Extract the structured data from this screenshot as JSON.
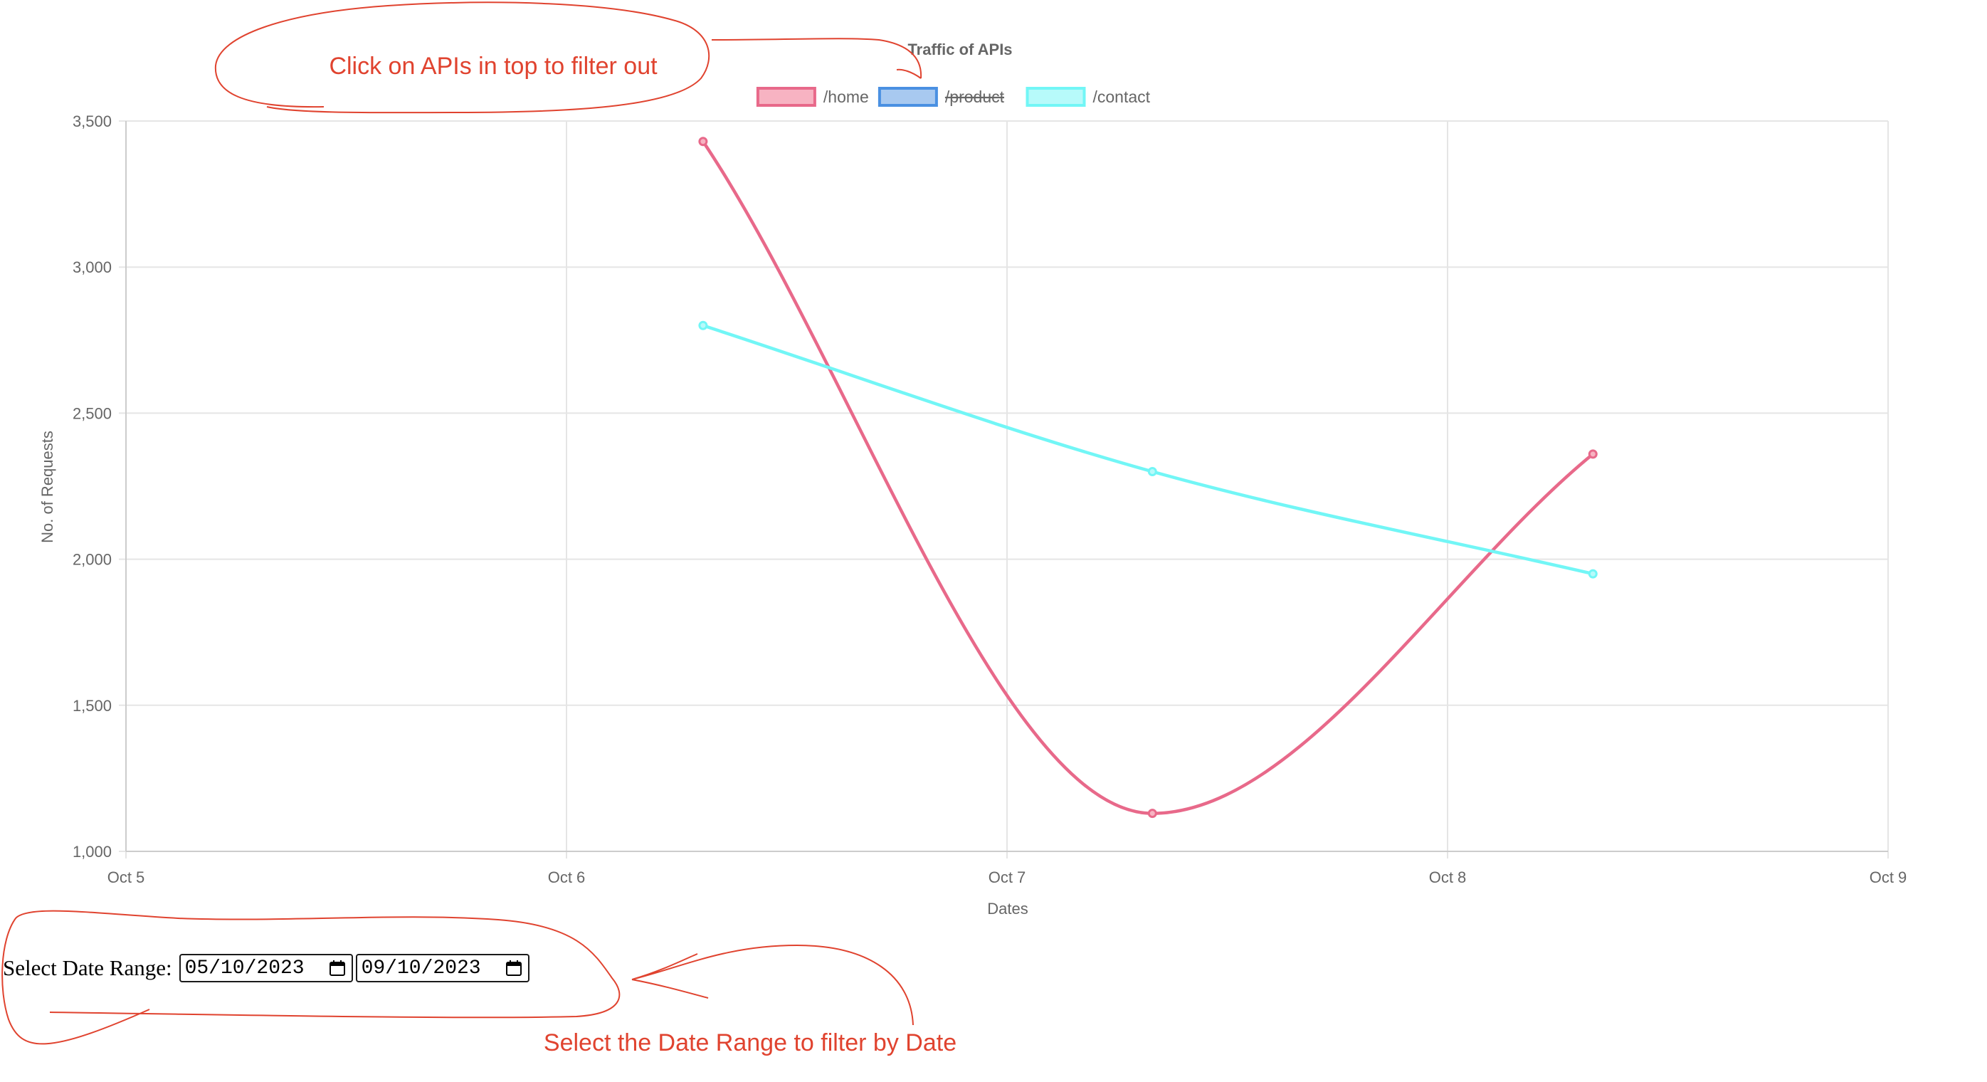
{
  "chart_data": {
    "type": "line",
    "title": "Traffic of APIs",
    "xlabel": "Dates",
    "ylabel": "No. of Requests",
    "x_ticks": [
      "Oct 5",
      "Oct 6",
      "Oct 7",
      "Oct 8",
      "Oct 9"
    ],
    "y_ticks": [
      "1,000",
      "1,500",
      "2,000",
      "2,500",
      "3,000",
      "3,500"
    ],
    "xlim": [
      0,
      4
    ],
    "ylim": [
      1000,
      3500
    ],
    "grid": true,
    "legend_position": "top-center",
    "series": [
      {
        "name": "/home",
        "color": "#e8698a",
        "fill": "#f7b3c2",
        "hidden": false,
        "x": [
          1.31,
          2.33,
          3.33
        ],
        "values": [
          3430,
          1130,
          2360
        ]
      },
      {
        "name": "/product",
        "color": "#4a90e2",
        "fill": "#a8c9f0",
        "hidden": true,
        "x": [],
        "values": []
      },
      {
        "name": "/contact",
        "color": "#72f6f6",
        "fill": "#b7fafa",
        "hidden": false,
        "x": [
          1.31,
          2.33,
          3.33
        ],
        "values": [
          2800,
          2300,
          1950
        ]
      }
    ]
  },
  "annotations": {
    "top": "Click on APIs in top to filter out",
    "bottom": "Select the Date Range to filter by Date",
    "color": "#e0432f"
  },
  "date_range": {
    "label": "Select Date Range:",
    "start": "05/10/2023",
    "end": "09/10/2023",
    "icon": "calendar-icon"
  }
}
